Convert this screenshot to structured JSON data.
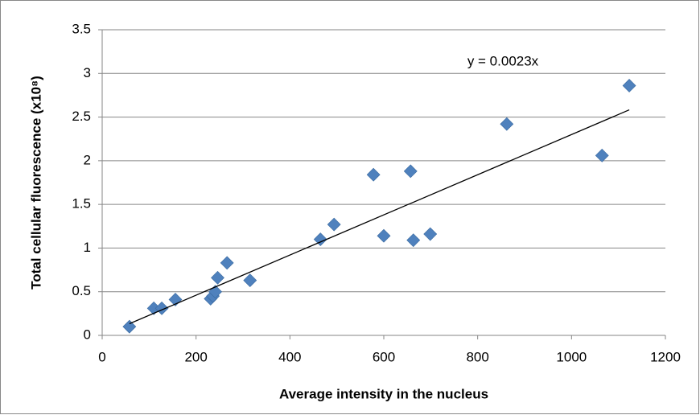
{
  "chart_data": {
    "type": "scatter",
    "x_label": "Average intensity in the nucleus",
    "y_label": "Total cellular fluorescence (x10⁸)",
    "x": [
      58,
      110,
      127,
      156,
      231,
      236,
      241,
      246,
      266,
      315,
      465,
      494,
      578,
      600,
      657,
      663,
      699,
      862,
      1065,
      1123
    ],
    "series": [
      {
        "color": "#4f81bd",
        "values": [
          0.1,
          0.31,
          0.31,
          0.41,
          0.42,
          0.45,
          0.5,
          0.66,
          0.83,
          0.63,
          1.1,
          1.27,
          1.84,
          1.14,
          1.88,
          1.09,
          1.16,
          2.42,
          2.06,
          2.86
        ]
      }
    ],
    "trendline": {
      "slope": 0.0023,
      "label": "y = 0.0023x",
      "color": "#000000"
    },
    "xlim": [
      0,
      1200
    ],
    "xticks": [
      0,
      200,
      400,
      600,
      800,
      1000,
      1200
    ],
    "ylim": [
      0,
      3.5
    ],
    "yticks": [
      0,
      0.5,
      1,
      1.5,
      2,
      2.5,
      3,
      3.5
    ],
    "grid": true
  }
}
